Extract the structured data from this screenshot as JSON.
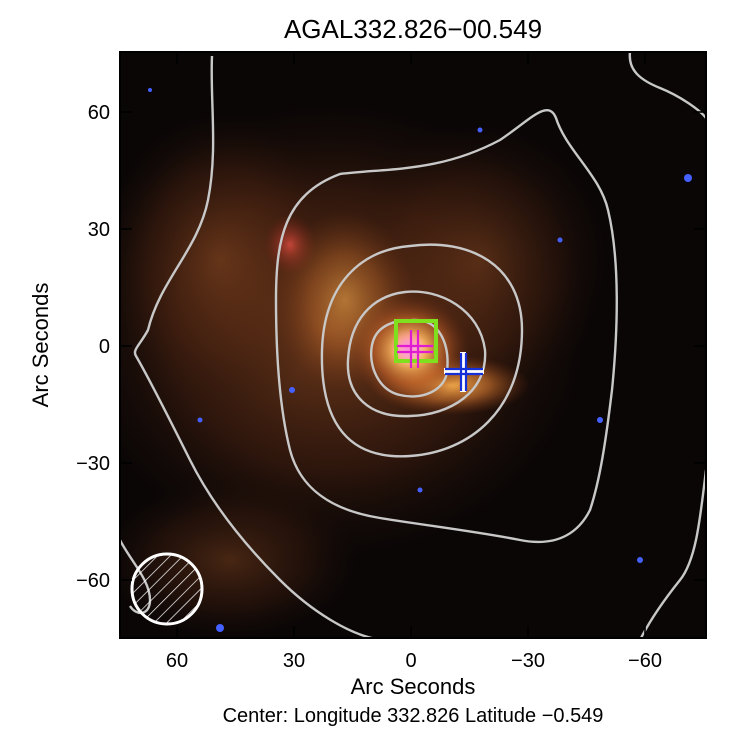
{
  "title": "AGAL332.826−00.549",
  "xlabel": "Arc Seconds",
  "ylabel": "Arc Seconds",
  "center_label": "Center:  Longitude 332.826 Latitude −0.549",
  "x_ticks": [
    "60",
    "30",
    "0",
    "−30",
    "−60"
  ],
  "y_ticks": [
    "60",
    "30",
    "0",
    "−30",
    "−60"
  ],
  "colors": {
    "contour": "#c8c8c8",
    "box_marker": "#7fe01e",
    "cross_magenta": "#e01cd2",
    "cross_blue": "#1530d8",
    "beam": "#ffffff",
    "background": "#0a0606"
  }
}
